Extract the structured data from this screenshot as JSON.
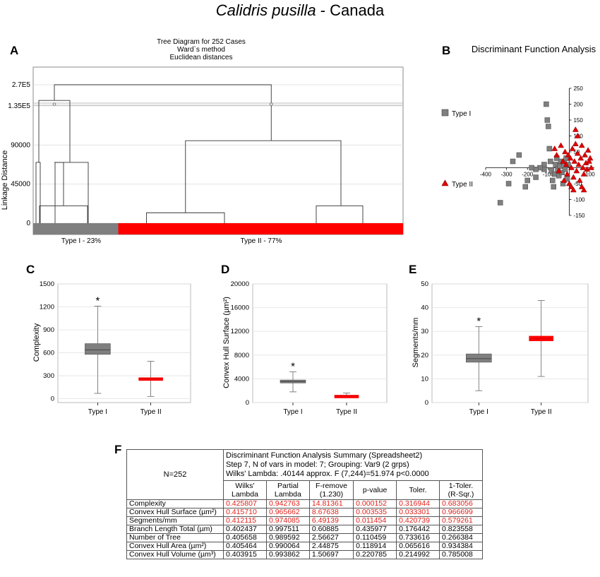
{
  "title": {
    "species": "Calidris pusilla",
    "region": " - Canada"
  },
  "panels": {
    "A": "A",
    "B": "B",
    "C": "C",
    "D": "D",
    "E": "E",
    "F": "F"
  },
  "colors": {
    "type1": "#7f7f7f",
    "type2": "#ff0000",
    "sig_text": "#e0201b"
  },
  "chart_data": [
    {
      "id": "A",
      "type": "dendrogram",
      "title_lines": [
        "Tree Diagram for 252 Cases",
        "Ward`s method",
        "Euclidean distances"
      ],
      "ylabel": "Linkage Distance",
      "ylim": [
        0,
        270000
      ],
      "yticks": [
        0,
        45000,
        90000,
        135000,
        270000
      ],
      "ytick_labels": [
        "0",
        "45000",
        "90000",
        "1.35E5",
        "2.7E5"
      ],
      "axis_break_between": [
        135000,
        270000
      ],
      "root_height": 270000,
      "cluster_heights": {
        "type1": [
          155000,
          70000,
          40000,
          20000
        ],
        "type2": [
          95000,
          25000,
          12000,
          14000
        ]
      },
      "groups": [
        {
          "label": "Type I - 23%",
          "share": 0.23
        },
        {
          "label": "Type II - 77%",
          "share": 0.77
        }
      ]
    },
    {
      "id": "B",
      "type": "scatter",
      "title": "Discriminant Function Analysis",
      "xlim": [
        -400,
        120
      ],
      "ylim": [
        -150,
        250
      ],
      "xticks": [
        -400,
        -300,
        -200,
        -100,
        100
      ],
      "yticks": [
        -150,
        -100,
        -50,
        50,
        100,
        150,
        200,
        250
      ],
      "series": [
        {
          "name": "Type I",
          "marker": "square",
          "points": [
            [
              -330,
              -110
            ],
            [
              -290,
              -50
            ],
            [
              -240,
              40
            ],
            [
              -270,
              20
            ],
            [
              -210,
              -60
            ],
            [
              -200,
              -40
            ],
            [
              -160,
              -30
            ],
            [
              -120,
              10
            ],
            [
              -110,
              200
            ],
            [
              -105,
              150
            ],
            [
              -100,
              130
            ],
            [
              -95,
              60
            ],
            [
              -90,
              20
            ],
            [
              -85,
              -10
            ],
            [
              -80,
              -40
            ],
            [
              -75,
              -60
            ],
            [
              -70,
              -20
            ],
            [
              -65,
              10
            ],
            [
              -60,
              30
            ],
            [
              -55,
              -5
            ],
            [
              -50,
              -25
            ],
            [
              -45,
              5
            ],
            [
              -40,
              20
            ],
            [
              -35,
              -15
            ],
            [
              -30,
              -50
            ],
            [
              -25,
              15
            ],
            [
              -20,
              -5
            ],
            [
              -15,
              30
            ],
            [
              -10,
              -35
            ],
            [
              -5,
              10
            ],
            [
              -120,
              -5
            ],
            [
              -140,
              0
            ],
            [
              -160,
              -5
            ],
            [
              -180,
              0
            ]
          ]
        },
        {
          "name": "Type II",
          "marker": "triangle",
          "points": [
            [
              -70,
              60
            ],
            [
              -60,
              40
            ],
            [
              -50,
              -10
            ],
            [
              -40,
              70
            ],
            [
              -30,
              20
            ],
            [
              -25,
              -40
            ],
            [
              -20,
              50
            ],
            [
              -15,
              10
            ],
            [
              -10,
              -20
            ],
            [
              -5,
              40
            ],
            [
              0,
              -50
            ],
            [
              5,
              30
            ],
            [
              10,
              0
            ],
            [
              15,
              60
            ],
            [
              20,
              -30
            ],
            [
              25,
              20
            ],
            [
              30,
              75
            ],
            [
              35,
              -10
            ],
            [
              40,
              45
            ],
            [
              45,
              10
            ],
            [
              50,
              -40
            ],
            [
              55,
              30
            ],
            [
              60,
              70
            ],
            [
              65,
              0
            ],
            [
              70,
              -20
            ],
            [
              75,
              40
            ],
            [
              80,
              15
            ],
            [
              85,
              -5
            ],
            [
              90,
              55
            ],
            [
              95,
              20
            ],
            [
              30,
              120
            ],
            [
              40,
              100
            ],
            [
              60,
              -60
            ],
            [
              70,
              -70
            ],
            [
              100,
              30
            ],
            [
              105,
              0
            ],
            [
              10,
              -60
            ],
            [
              20,
              -70
            ]
          ]
        }
      ]
    },
    {
      "id": "C",
      "type": "box",
      "ylabel": "Complexity",
      "ylim": [
        -50,
        1500
      ],
      "yticks": [
        0,
        300,
        600,
        900,
        1200,
        1500
      ],
      "categories": [
        "Type I",
        "Type II"
      ],
      "boxes": [
        {
          "min": 70,
          "q1": 580,
          "median": 640,
          "q3": 720,
          "max": 1210,
          "significant": true
        },
        {
          "min": 30,
          "q1": 245,
          "median": 260,
          "q3": 275,
          "max": 490,
          "significant": false
        }
      ],
      "annotation": "*"
    },
    {
      "id": "D",
      "type": "box",
      "ylabel": "Convex Hull Surface (µm²)",
      "ylim": [
        0,
        20000
      ],
      "yticks": [
        0,
        4000,
        8000,
        12000,
        16000,
        20000
      ],
      "categories": [
        "Type I",
        "Type II"
      ],
      "boxes": [
        {
          "min": 1800,
          "q1": 3300,
          "median": 3550,
          "q3": 3800,
          "max": 5200,
          "significant": true
        },
        {
          "min": 900,
          "q1": 1050,
          "median": 1150,
          "q3": 1250,
          "max": 1600,
          "significant": false
        }
      ],
      "annotation": "*"
    },
    {
      "id": "E",
      "type": "box",
      "ylabel": "Segments/mm",
      "ylim": [
        0,
        50
      ],
      "yticks": [
        0,
        10,
        20,
        30,
        40,
        50
      ],
      "categories": [
        "Type I",
        "Type II"
      ],
      "boxes": [
        {
          "min": 5,
          "q1": 17,
          "median": 18.5,
          "q3": 20.5,
          "max": 32,
          "significant": true
        },
        {
          "min": 11,
          "q1": 26,
          "median": 27,
          "q3": 28,
          "max": 43,
          "significant": false
        }
      ],
      "annotation": "*"
    },
    {
      "id": "F",
      "type": "table",
      "n_label": "N=252",
      "summary_lines": [
        "Discriminant Function Analysis Summary (Spreadsheet2)",
        "Step 7, N of vars in model: 7; Grouping: Var9 (2 grps)",
        "Wilks' Lambda: .40144 approx. F (7,244)=51.974 p<0.0000"
      ],
      "columns": [
        [
          "Wilks'",
          "Lambda"
        ],
        [
          "Partial",
          "Lambda"
        ],
        [
          "F-remove",
          "(1.230)"
        ],
        [
          "p-value",
          ""
        ],
        [
          "Toler.",
          ""
        ],
        [
          "1-Toler.",
          "(R-Sqr.)"
        ]
      ],
      "rows": [
        {
          "label": "Complexity",
          "values": [
            "0.425807",
            "0.942763",
            "14.81361",
            "0.000152",
            "0.316944",
            "0.683056"
          ],
          "significant": true
        },
        {
          "label": "Convex Hull Surface (µm²)",
          "values": [
            "0.415710",
            "0.965662",
            "8.67638",
            "0.003535",
            "0.033301",
            "0.966699"
          ],
          "significant": true
        },
        {
          "label": "Segments/mm",
          "values": [
            "0.412115",
            "0.974085",
            "6.49139",
            "0.011454",
            "0.420739",
            "0.579261"
          ],
          "significant": true
        },
        {
          "label": "Branch Length Total (µm)",
          "values": [
            "0.402437",
            "0.997511",
            "0.60885",
            "0.435977",
            "0.176442",
            "0.823558"
          ],
          "significant": false
        },
        {
          "label": "Number of Tree",
          "values": [
            "0.405658",
            "0.989592",
            "2.56627",
            "0.110459",
            "0.733616",
            "0.266384"
          ],
          "significant": false
        },
        {
          "label": "Convex Hull Area (µm²)",
          "values": [
            "0.405464",
            "0.990064",
            "2.44875",
            "0.118914",
            "0.065616",
            "0.934384"
          ],
          "significant": false
        },
        {
          "label": "Convex Hull Volume (µm³)",
          "values": [
            "0.403915",
            "0.993862",
            "1.50697",
            "0.220785",
            "0.214992",
            "0.785008"
          ],
          "significant": false
        }
      ]
    }
  ]
}
